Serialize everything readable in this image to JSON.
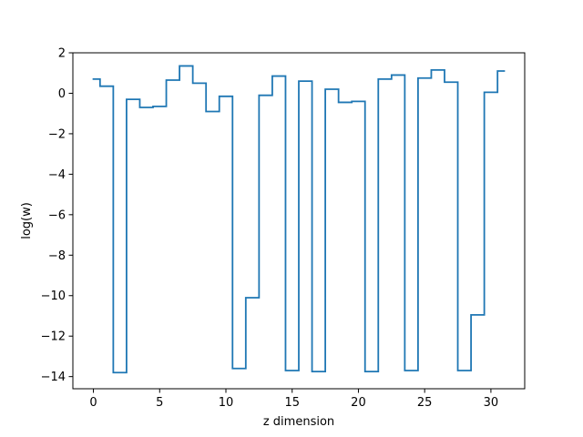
{
  "chart_data": {
    "type": "line",
    "drawstyle": "steps-mid",
    "title": "",
    "xlabel": "z dimension",
    "ylabel": "log(w)",
    "xlim": [
      -1.55,
      32.55
    ],
    "ylim": [
      -14.6,
      2.0
    ],
    "xticks": [
      0,
      5,
      10,
      15,
      20,
      25,
      30
    ],
    "xtick_labels": [
      "0",
      "5",
      "10",
      "15",
      "20",
      "25",
      "30"
    ],
    "yticks": [
      2,
      0,
      -2,
      -4,
      -6,
      -8,
      -10,
      -12,
      -14
    ],
    "ytick_labels": [
      "2",
      "0",
      "−2",
      "−4",
      "−6",
      "−8",
      "−10",
      "−12",
      "−14"
    ],
    "grid": false,
    "series": [
      {
        "color": "#1f77b4",
        "x": [
          0,
          1,
          2,
          3,
          4,
          5,
          6,
          7,
          8,
          9,
          10,
          11,
          12,
          13,
          14,
          15,
          16,
          17,
          18,
          19,
          20,
          21,
          22,
          23,
          24,
          25,
          26,
          27,
          28,
          29,
          30,
          31
        ],
        "values": [
          0.7,
          0.35,
          -13.8,
          -0.3,
          -0.7,
          -0.65,
          0.65,
          1.35,
          0.5,
          -0.9,
          -0.15,
          -13.6,
          -10.1,
          -0.1,
          0.85,
          -13.7,
          0.6,
          -13.75,
          0.2,
          -0.45,
          -0.4,
          -13.75,
          0.7,
          0.9,
          -13.7,
          0.75,
          1.15,
          0.55,
          -13.7,
          -10.95,
          0.05,
          1.1
        ]
      }
    ]
  }
}
